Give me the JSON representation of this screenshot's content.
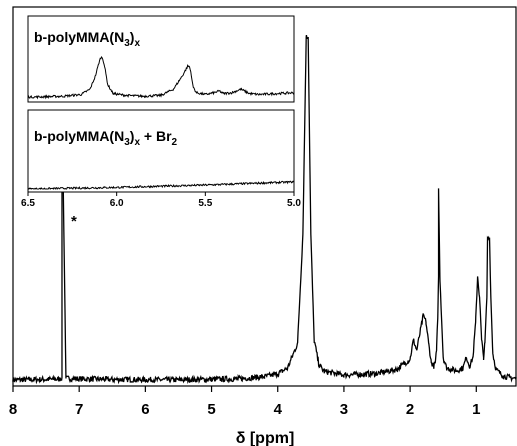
{
  "chart_data": [
    {
      "type": "line",
      "title": "",
      "xlabel": "δ [ppm]",
      "ylabel": "",
      "xlim": [
        8.0,
        0.4
      ],
      "x_reversed": true,
      "ylim": [
        0,
        100
      ],
      "x_ticks": [
        8,
        7,
        6,
        5,
        4,
        3,
        2,
        1
      ],
      "grid": false,
      "legend": "none",
      "series": [
        {
          "x": [
            8.0,
            7.3,
            7.26,
            7.26,
            7.24,
            7.2,
            6.5,
            5.5,
            4.6,
            4.2,
            4.0,
            3.85,
            3.7,
            3.62,
            3.57,
            3.54,
            3.5,
            3.45,
            3.38,
            3.3,
            3.0,
            2.5,
            2.2,
            2.0,
            1.95,
            1.9,
            1.85,
            1.8,
            1.76,
            1.72,
            1.68,
            1.64,
            1.62,
            1.6,
            1.58,
            1.57,
            1.57,
            1.55,
            1.5,
            1.45,
            1.3,
            1.2,
            1.15,
            1.1,
            1.05,
            1.01,
            0.98,
            0.95,
            0.92,
            0.89,
            0.87,
            0.84,
            0.83,
            0.8,
            0.78,
            0.75,
            0.7,
            0.6,
            0.5,
            0.4
          ],
          "y": [
            0.6,
            0.8,
            1.3,
            54.5,
            54.5,
            1.0,
            0.7,
            0.6,
            0.9,
            1.5,
            2.3,
            4.0,
            11,
            42,
            98,
            98,
            42,
            12,
            5,
            3,
            2.0,
            2.4,
            3.6,
            6.5,
            12,
            9,
            14,
            19,
            17,
            11,
            5.5,
            4.5,
            5.5,
            9,
            20,
            30,
            55,
            30,
            7,
            4,
            3.2,
            4,
            7,
            4.5,
            7,
            17,
            30,
            24,
            12,
            7,
            11,
            24,
            41,
            41,
            24,
            8,
            3.5,
            1.8,
            1.3,
            1.0
          ]
        }
      ],
      "annotations": [
        {
          "text": "*",
          "x": 7.2
        }
      ]
    },
    {
      "type": "line",
      "title": "b-polyMMA(N3)x",
      "xlim": [
        6.5,
        5.0
      ],
      "x_reversed": true,
      "ylim": [
        0,
        100
      ],
      "x_ticks": [
        6.5,
        6.0,
        5.5,
        5.0
      ],
      "series": [
        {
          "x": [
            6.5,
            6.3,
            6.2,
            6.15,
            6.12,
            6.1,
            6.09,
            6.08,
            6.07,
            6.05,
            6.02,
            5.95,
            5.85,
            5.75,
            5.68,
            5.63,
            5.6,
            5.59,
            5.58,
            5.57,
            5.55,
            5.5,
            5.45,
            5.42,
            5.4,
            5.35,
            5.3,
            5.28,
            5.25,
            5.2,
            5.1,
            5.0
          ],
          "y": [
            1,
            2,
            4,
            10,
            25,
            40,
            46,
            46,
            38,
            15,
            5,
            3,
            2,
            3,
            10,
            25,
            36,
            36,
            28,
            13,
            6,
            4,
            6,
            8,
            5,
            6,
            10,
            8,
            5,
            4,
            5,
            6
          ]
        }
      ]
    },
    {
      "type": "line",
      "title": "b-polyMMA(N3)x + Br2",
      "xlim": [
        6.5,
        5.0
      ],
      "x_reversed": true,
      "ylim": [
        0,
        100
      ],
      "x_ticks": [
        6.5,
        6.0,
        5.5,
        5.0
      ],
      "x_tick_labels": [
        "6.5",
        "6.0",
        "5.5",
        "5.0"
      ],
      "series": [
        {
          "x": [
            6.5,
            6.0,
            5.5,
            5.0
          ],
          "y": [
            0,
            2,
            5,
            9
          ]
        }
      ]
    }
  ],
  "labels": {
    "main_ticks": [
      "8",
      "7",
      "6",
      "5",
      "4",
      "3",
      "2",
      "1"
    ],
    "xlabel": "δ [ppm]",
    "star": "*",
    "inset_ticks": [
      "6.5",
      "6.0",
      "5.5",
      "5.0"
    ],
    "inset1": {
      "base": "b-polyMMA(N",
      "sub1": "3",
      "mid": ")",
      "sub2": "x",
      "tail": ""
    },
    "inset2": {
      "base": "b-polyMMA(N",
      "sub1": "3",
      "mid": ")",
      "sub2": "x",
      "tail": " + Br",
      "sub3": "2"
    }
  },
  "colors": {
    "line": "#000000",
    "background": "#ffffff"
  }
}
